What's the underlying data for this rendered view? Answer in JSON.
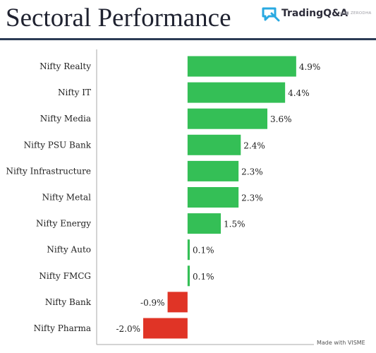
{
  "header": {
    "title": "Sectoral Performance",
    "logo_text": "TradingQ&A",
    "logo_sub": "by ■ ZERODHA",
    "logo_icon": "tradingqa-logo-icon"
  },
  "footer": {
    "watermark": "Made with VISME"
  },
  "colors": {
    "positive": "#34bf56",
    "negative": "#e03426",
    "axis": "#aaaaaa",
    "rule": "#2b3b55"
  },
  "chart_data": {
    "type": "bar",
    "orientation": "horizontal",
    "categories": [
      "Nifty Realty",
      "Nifty IT",
      "Nifty Media",
      "Nifty PSU Bank",
      "Nifty Infrastructure",
      "Nifty Metal",
      "Nifty Energy",
      "Nifty Auto",
      "Nifty FMCG",
      "Nifty Bank",
      "Nifty Pharma"
    ],
    "values": [
      4.9,
      4.4,
      3.6,
      2.4,
      2.3,
      2.3,
      1.5,
      0.1,
      0.1,
      -0.9,
      -2.0
    ],
    "value_labels": [
      "4.9%",
      "4.4%",
      "3.6%",
      "2.4%",
      "2.3%",
      "2.3%",
      "1.5%",
      "0.1%",
      "0.1%",
      "-0.9%",
      "-2.0%"
    ],
    "title": "Sectoral Performance",
    "xlabel": "",
    "ylabel": "",
    "xlim": [
      -4.1,
      5.7
    ],
    "grid": false,
    "legend": "none"
  }
}
